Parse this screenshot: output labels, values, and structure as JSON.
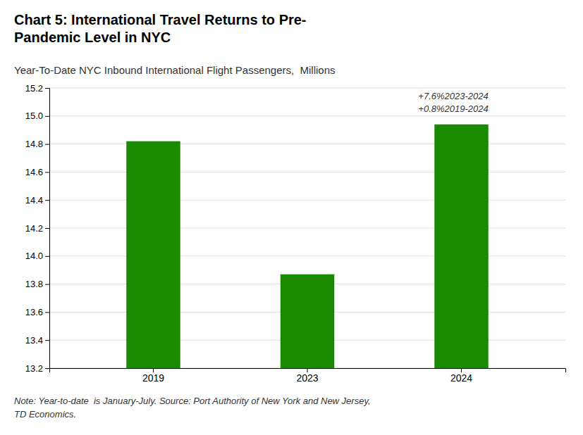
{
  "chart_data": {
    "type": "bar",
    "title": "Chart 5: International Travel Returns to Pre-\nPandemic Level in NYC",
    "subtitle": "Year-To-Date NYC Inbound International Flight Passengers,  Millions",
    "categories": [
      "2019",
      "2023",
      "2024"
    ],
    "values": [
      14.82,
      13.87,
      14.94
    ],
    "color": "#1a8a00",
    "ylim": [
      13.2,
      15.2
    ],
    "yticks": [
      13.2,
      13.4,
      13.6,
      13.8,
      {
        "value": 14.0,
        "label": "14.0"
      },
      14.2,
      14.4,
      14.6,
      14.8,
      {
        "value": 15.0,
        "label": "15.0"
      },
      15.2
    ],
    "grid": true,
    "annotations": [
      "+7.6%2023-2024",
      "+0.8%2019-2024"
    ],
    "note": "Note: Year-to-date  is January-July. Source: Port Authority of New York and New Jersey,\nTD Economics."
  }
}
